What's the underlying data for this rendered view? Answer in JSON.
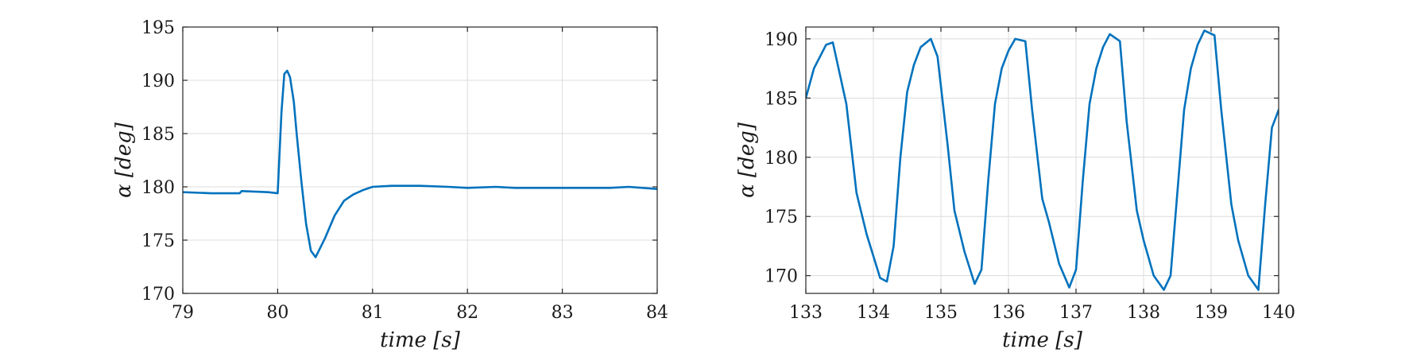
{
  "chart_data": [
    {
      "type": "line",
      "xlabel": "time [s]",
      "ylabel": "α [deg]",
      "xlim": [
        79,
        84
      ],
      "ylim": [
        170,
        195
      ],
      "xticks": [
        79,
        80,
        81,
        82,
        83,
        84
      ],
      "yticks": [
        170,
        175,
        180,
        185,
        190,
        195
      ],
      "grid": true,
      "series": [
        {
          "color": "#0072BD",
          "x": [
            79.0,
            79.3,
            79.6,
            79.62,
            79.9,
            80.0,
            80.04,
            80.07,
            80.1,
            80.13,
            80.17,
            80.2,
            80.25,
            80.3,
            80.35,
            80.4,
            80.5,
            80.6,
            80.7,
            80.8,
            80.9,
            81.0,
            81.2,
            81.5,
            81.8,
            82.0,
            82.3,
            82.5,
            83.0,
            83.5,
            83.7,
            84.0
          ],
          "values": [
            179.5,
            179.4,
            179.4,
            179.6,
            179.5,
            179.4,
            187.0,
            190.6,
            190.9,
            190.3,
            188.0,
            185.0,
            180.5,
            176.5,
            174.0,
            173.4,
            175.2,
            177.3,
            178.7,
            179.3,
            179.7,
            180.0,
            180.1,
            180.1,
            180.0,
            179.9,
            180.0,
            179.9,
            179.9,
            179.9,
            180.0,
            179.8
          ]
        }
      ]
    },
    {
      "type": "line",
      "xlabel": "time [s]",
      "ylabel": "α [deg]",
      "xlim": [
        133,
        140
      ],
      "ylim": [
        168.5,
        191
      ],
      "xticks": [
        133,
        134,
        135,
        136,
        137,
        138,
        139,
        140
      ],
      "yticks": [
        170,
        175,
        180,
        185,
        190
      ],
      "grid": true,
      "series": [
        {
          "color": "#0072BD",
          "x": [
            133.0,
            133.12,
            133.3,
            133.4,
            133.6,
            133.75,
            133.9,
            134.1,
            134.2,
            134.3,
            134.4,
            134.5,
            134.6,
            134.7,
            134.85,
            134.95,
            135.1,
            135.2,
            135.35,
            135.5,
            135.6,
            135.7,
            135.8,
            135.9,
            136.0,
            136.1,
            136.25,
            136.35,
            136.5,
            136.6,
            136.75,
            136.9,
            137.0,
            137.1,
            137.2,
            137.3,
            137.4,
            137.5,
            137.65,
            137.75,
            137.9,
            138.0,
            138.15,
            138.3,
            138.4,
            138.5,
            138.6,
            138.7,
            138.8,
            138.9,
            139.05,
            139.15,
            139.3,
            139.4,
            139.55,
            139.7,
            139.8,
            139.9,
            140.0
          ],
          "values": [
            185.0,
            187.5,
            189.5,
            189.7,
            184.5,
            177.0,
            173.5,
            169.8,
            169.5,
            172.5,
            180.0,
            185.5,
            187.8,
            189.3,
            190.0,
            188.5,
            181.0,
            175.5,
            172.0,
            169.3,
            170.5,
            178.0,
            184.5,
            187.5,
            189.0,
            190.0,
            189.8,
            184.0,
            176.5,
            174.5,
            171.0,
            169.0,
            170.5,
            178.0,
            184.5,
            187.5,
            189.3,
            190.4,
            189.8,
            183.0,
            175.5,
            173.0,
            170.0,
            168.8,
            170.0,
            177.0,
            184.0,
            187.5,
            189.5,
            190.7,
            190.3,
            184.0,
            176.0,
            173.0,
            170.0,
            168.8,
            176.0,
            182.5,
            184.0
          ]
        }
      ]
    }
  ]
}
